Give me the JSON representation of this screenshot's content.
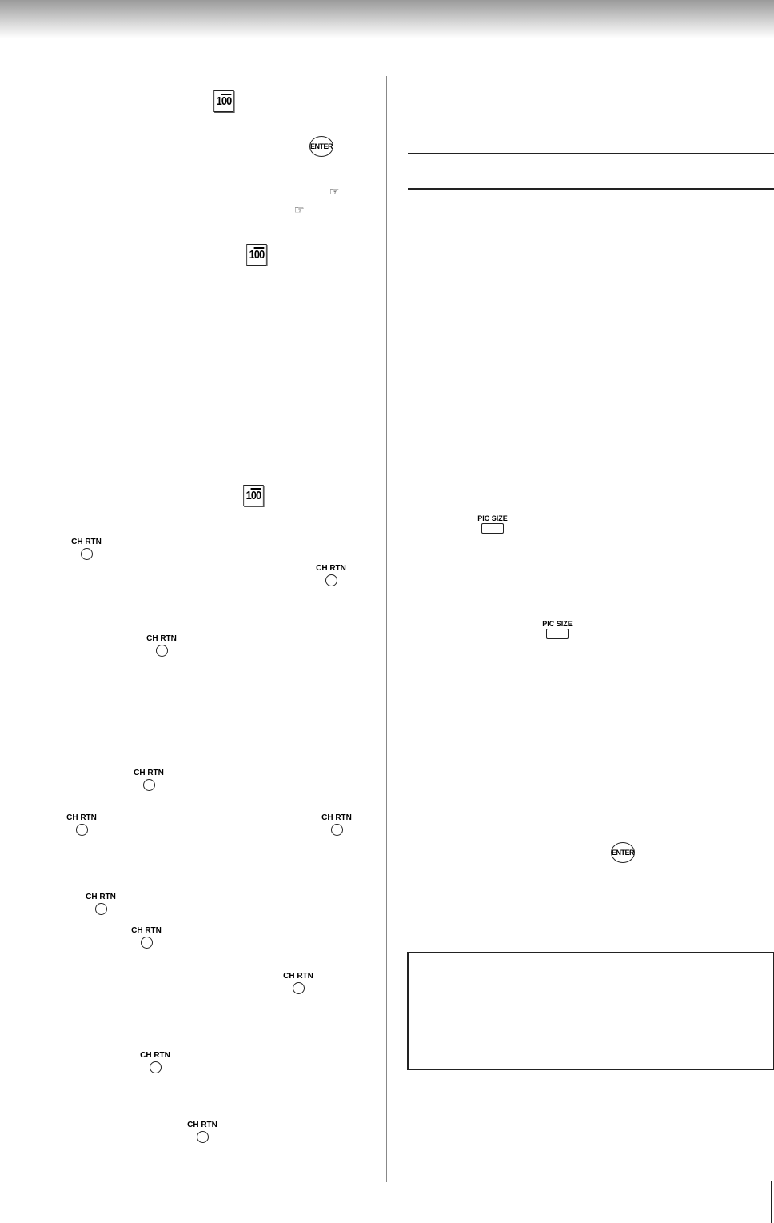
{
  "icons": {
    "hundred_label": "100",
    "enter_label": "ENTER",
    "ch_rtn_label": "CH RTN",
    "pic_size_label": "PIC SIZE",
    "hand": "☞"
  },
  "colors": {
    "text": "#000000",
    "header_gradient": "#9a9a9a"
  }
}
